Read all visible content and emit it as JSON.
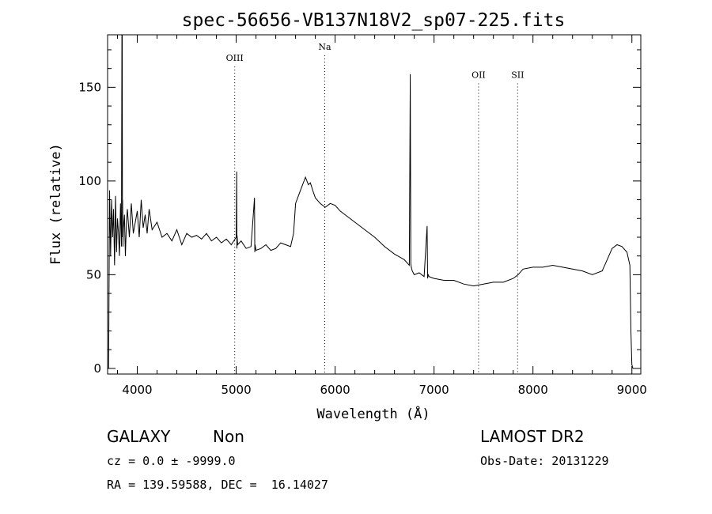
{
  "chart_data": {
    "type": "line",
    "title": "spec-56656-VB137N18V2_sp07-225.fits",
    "xlabel": "Wavelength (Å)",
    "ylabel": "Flux (relative)",
    "xlim": [
      3700,
      9090
    ],
    "ylim": [
      -3,
      178
    ],
    "x_ticks": [
      4000,
      5000,
      6000,
      7000,
      8000,
      9000
    ],
    "y_ticks": [
      0,
      50,
      100,
      150
    ],
    "grid": false,
    "line_color": "#000000",
    "lines": [
      {
        "label": "OIII",
        "x": 4985,
        "label_y": 164
      },
      {
        "label": "Na",
        "x": 5895,
        "label_y": 170
      },
      {
        "label": "OII",
        "x": 7450,
        "label_y": 155
      },
      {
        "label": "SII",
        "x": 7845,
        "label_y": 155
      }
    ],
    "series": [
      {
        "x": [
          3710,
          3720,
          3730,
          3740,
          3750,
          3760,
          3770,
          3780,
          3790,
          3800,
          3810,
          3820,
          3830,
          3840,
          3845,
          3848,
          3850,
          3852,
          3855,
          3860,
          3870,
          3880,
          3890,
          3900,
          3920,
          3940,
          3960,
          3980,
          4000,
          4020,
          4040,
          4060,
          4080,
          4100,
          4120,
          4150,
          4200,
          4250,
          4300,
          4350,
          4400,
          4450,
          4500,
          4550,
          4600,
          4650,
          4700,
          4750,
          4800,
          4850,
          4900,
          4950,
          5000,
          5005,
          5007,
          5009,
          5015,
          5050,
          5100,
          5150,
          5185,
          5188,
          5191,
          5200,
          5250,
          5300,
          5350,
          5400,
          5450,
          5500,
          5550,
          5580,
          5600,
          5650,
          5700,
          5730,
          5750,
          5780,
          5800,
          5850,
          5900,
          5950,
          6000,
          6050,
          6100,
          6200,
          6300,
          6400,
          6500,
          6600,
          6700,
          6750,
          6760,
          6765,
          6770,
          6780,
          6790,
          6800,
          6850,
          6900,
          6930,
          6935,
          6940,
          6950,
          7000,
          7100,
          7200,
          7300,
          7400,
          7500,
          7600,
          7700,
          7800,
          7850,
          7900,
          8000,
          8100,
          8200,
          8300,
          8400,
          8500,
          8600,
          8700,
          8750,
          8800,
          8850,
          8900,
          8950,
          8980,
          8990,
          9000,
          9010
        ],
        "y": [
          0,
          95,
          60,
          90,
          70,
          85,
          55,
          92,
          62,
          80,
          72,
          60,
          88,
          65,
          178,
          178,
          70,
          90,
          65,
          75,
          82,
          60,
          78,
          85,
          70,
          88,
          72,
          78,
          84,
          70,
          90,
          75,
          82,
          72,
          85,
          74,
          78,
          70,
          72,
          68,
          74,
          66,
          72,
          70,
          71,
          69,
          72,
          68,
          70,
          67,
          69,
          66,
          70,
          105,
          64,
          71,
          66,
          68,
          64,
          65,
          91,
          62,
          66,
          63,
          64,
          66,
          63,
          64,
          67,
          66,
          65,
          72,
          88,
          95,
          102,
          98,
          99,
          94,
          91,
          88,
          86,
          88,
          87,
          84,
          82,
          78,
          74,
          70,
          65,
          61,
          58,
          55,
          157,
          56,
          54,
          52,
          51,
          50,
          51,
          49,
          76,
          48,
          50,
          49,
          48,
          47,
          47,
          45,
          44,
          45,
          46,
          46,
          48,
          50,
          53,
          54,
          54,
          55,
          54,
          53,
          52,
          50,
          52,
          58,
          64,
          66,
          65,
          62,
          55,
          20,
          2,
          0
        ]
      }
    ]
  },
  "footer": {
    "object_class": "GALAXY",
    "object_subclass": "Non",
    "survey": "LAMOST DR2",
    "redshift": "cz = 0.0 ± -9999.0",
    "obs_date": "Obs-Date: 20131229",
    "coords": "RA = 139.59588, DEC =  16.14027"
  }
}
